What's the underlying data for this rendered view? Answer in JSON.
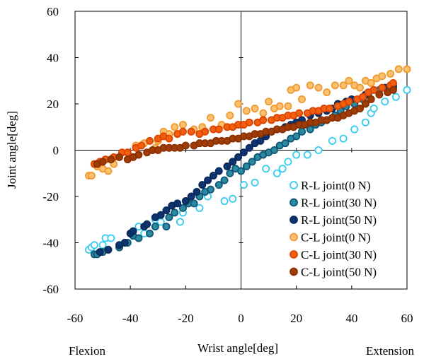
{
  "chart_data": {
    "type": "scatter",
    "xlabel": "Wrist angle[deg]",
    "ylabel": "Joint angle[deg]",
    "xlim": [
      -60,
      60
    ],
    "ylim": [
      -60,
      60
    ],
    "xticks": [
      -60,
      -40,
      -20,
      0,
      20,
      40,
      60
    ],
    "yticks": [
      -60,
      -40,
      -20,
      0,
      20,
      40,
      60
    ],
    "annotations": {
      "left": "Flexion",
      "right": "Extension"
    },
    "grid": false,
    "zero_lines": true,
    "legend_position": "bottom-right",
    "series": [
      {
        "name": "R-L joint(0 N)",
        "color": "#33ccee",
        "fill": "#ffffff",
        "points": [
          [
            -55,
            -43
          ],
          [
            -54,
            -42
          ],
          [
            -53,
            -41
          ],
          [
            -50,
            -41
          ],
          [
            -49,
            -38
          ],
          [
            -47,
            -38
          ],
          [
            -42,
            -40
          ],
          [
            -39,
            -37
          ],
          [
            -37,
            -33
          ],
          [
            -35,
            -36
          ],
          [
            -31,
            -30
          ],
          [
            -29,
            -31
          ],
          [
            -22,
            -31
          ],
          [
            -21,
            -27
          ],
          [
            -15,
            -25
          ],
          [
            -12,
            -20
          ],
          [
            -6,
            -22
          ],
          [
            -3,
            -21
          ],
          [
            1,
            -15
          ],
          [
            5,
            -14
          ],
          [
            9,
            -8
          ],
          [
            13,
            -10
          ],
          [
            15,
            -8
          ],
          [
            17,
            -5
          ],
          [
            20,
            -2
          ],
          [
            24,
            -2
          ],
          [
            28,
            0
          ],
          [
            33,
            4
          ],
          [
            37,
            5
          ],
          [
            41,
            9
          ],
          [
            45,
            12
          ],
          [
            47,
            16
          ],
          [
            48,
            18
          ],
          [
            52,
            21
          ],
          [
            56,
            23
          ],
          [
            60,
            26
          ]
        ]
      },
      {
        "name": "R-L joint(30 N)",
        "color": "#115577",
        "fill": "#2a8aa0",
        "points": [
          [
            -53,
            -45
          ],
          [
            -52,
            -45
          ],
          [
            -50,
            -44
          ],
          [
            -48,
            -43
          ],
          [
            -44,
            -42
          ],
          [
            -41,
            -40
          ],
          [
            -39,
            -37
          ],
          [
            -37,
            -38
          ],
          [
            -33,
            -36
          ],
          [
            -31,
            -33
          ],
          [
            -27,
            -33
          ],
          [
            -26,
            -29
          ],
          [
            -24,
            -27
          ],
          [
            -21,
            -25
          ],
          [
            -19,
            -23
          ],
          [
            -17,
            -23
          ],
          [
            -15,
            -20
          ],
          [
            -13,
            -18
          ],
          [
            -11,
            -17
          ],
          [
            -8,
            -15
          ],
          [
            -6,
            -13
          ],
          [
            -4,
            -10
          ],
          [
            -2,
            -8
          ],
          [
            0,
            -9
          ],
          [
            2,
            -7
          ],
          [
            4,
            -5
          ],
          [
            6,
            -3
          ],
          [
            8,
            -2
          ],
          [
            10,
            -1
          ],
          [
            12,
            0
          ],
          [
            14,
            2
          ],
          [
            16,
            3
          ],
          [
            18,
            5
          ],
          [
            20,
            6
          ],
          [
            22,
            8
          ],
          [
            25,
            9
          ],
          [
            27,
            11
          ],
          [
            29,
            12
          ],
          [
            31,
            13
          ],
          [
            34,
            15
          ],
          [
            36,
            17
          ],
          [
            38,
            19
          ],
          [
            41,
            20
          ],
          [
            44,
            22
          ],
          [
            46,
            24
          ],
          [
            50,
            26
          ],
          [
            54,
            28
          ],
          [
            55,
            27
          ]
        ]
      },
      {
        "name": "R-L joint(50 N)",
        "color": "#0a2a5a",
        "fill": "#0d3370",
        "points": [
          [
            -51,
            -44
          ],
          [
            -48,
            -43
          ],
          [
            -44,
            -41
          ],
          [
            -42,
            -40
          ],
          [
            -40,
            -36
          ],
          [
            -39,
            -35
          ],
          [
            -35,
            -33
          ],
          [
            -34,
            -32
          ],
          [
            -31,
            -29
          ],
          [
            -29,
            -28
          ],
          [
            -27,
            -26
          ],
          [
            -25,
            -24
          ],
          [
            -23,
            -23
          ],
          [
            -20,
            -22
          ],
          [
            -18,
            -20
          ],
          [
            -16,
            -18
          ],
          [
            -14,
            -15
          ],
          [
            -12,
            -13
          ],
          [
            -10,
            -11
          ],
          [
            -8,
            -9
          ],
          [
            -5,
            -7
          ],
          [
            -3,
            -5
          ],
          [
            -1,
            -3
          ],
          [
            1,
            -1
          ],
          [
            3,
            1
          ],
          [
            5,
            3
          ],
          [
            7,
            4
          ],
          [
            9,
            6
          ],
          [
            11,
            8
          ],
          [
            13,
            9
          ],
          [
            16,
            10
          ],
          [
            18,
            11
          ],
          [
            20,
            12
          ],
          [
            22,
            13
          ],
          [
            25,
            15
          ],
          [
            28,
            16
          ],
          [
            31,
            17
          ],
          [
            33,
            18
          ],
          [
            35,
            20
          ],
          [
            38,
            21
          ],
          [
            40,
            22
          ],
          [
            45,
            24
          ],
          [
            48,
            26
          ],
          [
            52,
            27
          ],
          [
            55,
            28
          ]
        ]
      },
      {
        "name": "C-L joint(0 N)",
        "color": "#f09a30",
        "fill": "#fbc070",
        "points": [
          [
            -55,
            -11
          ],
          [
            -54,
            -11
          ],
          [
            -52,
            -7
          ],
          [
            -50,
            -8
          ],
          [
            -48,
            -9
          ],
          [
            -46,
            -6
          ],
          [
            -41,
            -1
          ],
          [
            -38,
            2
          ],
          [
            -35,
            3
          ],
          [
            -31,
            1
          ],
          [
            -30,
            4
          ],
          [
            -28,
            8
          ],
          [
            -26,
            7
          ],
          [
            -24,
            10
          ],
          [
            -21,
            11
          ],
          [
            -17,
            9
          ],
          [
            -14,
            10
          ],
          [
            -11,
            14
          ],
          [
            -7,
            11
          ],
          [
            -4,
            15
          ],
          [
            -1,
            20
          ],
          [
            2,
            17
          ],
          [
            5,
            18
          ],
          [
            8,
            16
          ],
          [
            10,
            21
          ],
          [
            12,
            18
          ],
          [
            14,
            19
          ],
          [
            17,
            19
          ],
          [
            18,
            26
          ],
          [
            20,
            27
          ],
          [
            22,
            22
          ],
          [
            25,
            28
          ],
          [
            28,
            27
          ],
          [
            31,
            25
          ],
          [
            34,
            28
          ],
          [
            37,
            28
          ],
          [
            39,
            30
          ],
          [
            41,
            28
          ],
          [
            43,
            27
          ],
          [
            45,
            30
          ],
          [
            47,
            29
          ],
          [
            49,
            31
          ],
          [
            51,
            32
          ],
          [
            54,
            33
          ],
          [
            57,
            35
          ],
          [
            60,
            35
          ]
        ]
      },
      {
        "name": "C-L joint(30 N)",
        "color": "#dd4400",
        "fill": "#f06010",
        "points": [
          [
            -53,
            -6
          ],
          [
            -51,
            -5
          ],
          [
            -49,
            -4
          ],
          [
            -46,
            -3
          ],
          [
            -43,
            -1
          ],
          [
            -41,
            -1
          ],
          [
            -38,
            1
          ],
          [
            -36,
            2
          ],
          [
            -33,
            4
          ],
          [
            -30,
            5
          ],
          [
            -28,
            6
          ],
          [
            -26,
            5
          ],
          [
            -23,
            7
          ],
          [
            -21,
            8
          ],
          [
            -18,
            8
          ],
          [
            -15,
            7
          ],
          [
            -13,
            8
          ],
          [
            -10,
            9
          ],
          [
            -8,
            9
          ],
          [
            -5,
            10
          ],
          [
            -3,
            10
          ],
          [
            -1,
            11
          ],
          [
            1,
            11
          ],
          [
            3,
            12
          ],
          [
            6,
            12
          ],
          [
            8,
            13
          ],
          [
            11,
            13
          ],
          [
            13,
            14
          ],
          [
            15,
            14
          ],
          [
            17,
            15
          ],
          [
            19,
            15
          ],
          [
            21,
            16
          ],
          [
            24,
            16
          ],
          [
            26,
            17
          ],
          [
            28,
            17
          ],
          [
            30,
            18
          ],
          [
            32,
            18
          ],
          [
            35,
            19
          ],
          [
            37,
            20
          ],
          [
            39,
            21
          ],
          [
            42,
            22
          ],
          [
            44,
            23
          ],
          [
            46,
            25
          ],
          [
            48,
            26
          ],
          [
            51,
            27
          ],
          [
            54,
            28
          ],
          [
            55,
            29
          ]
        ]
      },
      {
        "name": "C-L joint(50 N)",
        "color": "#8a3000",
        "fill": "#a03c08",
        "points": [
          [
            -52,
            -6
          ],
          [
            -50,
            -5
          ],
          [
            -47,
            -4
          ],
          [
            -44,
            -3
          ],
          [
            -41,
            -4
          ],
          [
            -39,
            -3
          ],
          [
            -37,
            -2
          ],
          [
            -34,
            -1
          ],
          [
            -32,
            0
          ],
          [
            -30,
            0
          ],
          [
            -28,
            1
          ],
          [
            -26,
            1
          ],
          [
            -24,
            1
          ],
          [
            -22,
            1
          ],
          [
            -20,
            2
          ],
          [
            -17,
            2
          ],
          [
            -15,
            3
          ],
          [
            -13,
            3
          ],
          [
            -11,
            3
          ],
          [
            -9,
            4
          ],
          [
            -7,
            4
          ],
          [
            -5,
            4
          ],
          [
            -3,
            5
          ],
          [
            -1,
            5
          ],
          [
            1,
            6
          ],
          [
            3,
            6
          ],
          [
            5,
            7
          ],
          [
            7,
            7
          ],
          [
            9,
            8
          ],
          [
            11,
            8
          ],
          [
            13,
            9
          ],
          [
            15,
            9
          ],
          [
            17,
            10
          ],
          [
            19,
            10
          ],
          [
            21,
            11
          ],
          [
            23,
            11
          ],
          [
            25,
            12
          ],
          [
            27,
            12
          ],
          [
            29,
            13
          ],
          [
            31,
            13
          ],
          [
            33,
            14
          ],
          [
            35,
            14
          ],
          [
            37,
            15
          ],
          [
            39,
            16
          ],
          [
            41,
            17
          ],
          [
            43,
            18
          ],
          [
            45,
            20
          ],
          [
            47,
            22
          ],
          [
            50,
            24
          ],
          [
            53,
            25
          ],
          [
            55,
            26
          ]
        ]
      }
    ]
  }
}
